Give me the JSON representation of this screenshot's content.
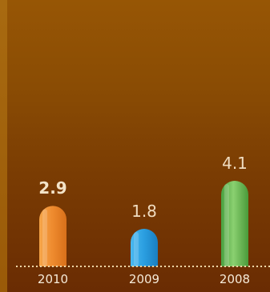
{
  "chart_data": {
    "type": "bar",
    "categories": [
      "2010",
      "2009",
      "2008"
    ],
    "values": [
      2.9,
      1.8,
      4.1
    ],
    "value_labels": [
      "2.9",
      "1.8",
      "4.1"
    ],
    "title": "",
    "xlabel": "",
    "ylabel": "",
    "ylim": [
      0,
      12
    ],
    "grid": false,
    "colors": {
      "2010": "#f08a2a",
      "2009": "#2a9ee0",
      "2008": "#5cb84a"
    },
    "baseline_color": "#f0d8a8"
  }
}
